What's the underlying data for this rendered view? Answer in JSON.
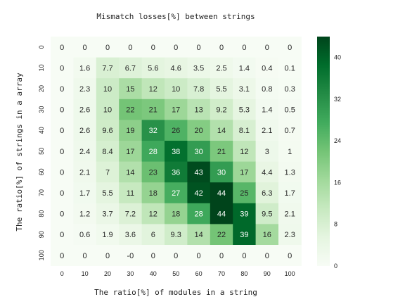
{
  "chart_data": {
    "type": "heatmap",
    "title": "Mismatch losses[%] between strings",
    "xlabel": "The ratio[%] of modules in a string",
    "ylabel": "The ratio[%] of strings in a array",
    "x_categories": [
      "0",
      "10",
      "20",
      "30",
      "40",
      "50",
      "60",
      "70",
      "80",
      "90",
      "100"
    ],
    "y_categories": [
      "0",
      "10",
      "20",
      "30",
      "40",
      "50",
      "60",
      "70",
      "80",
      "90",
      "100"
    ],
    "values": [
      [
        "0",
        "0",
        "0",
        "0",
        "0",
        "0",
        "0",
        "0",
        "0",
        "0",
        "0"
      ],
      [
        "0",
        "1.6",
        "7.7",
        "6.7",
        "5.6",
        "4.6",
        "3.5",
        "2.5",
        "1.4",
        "0.4",
        "0.1"
      ],
      [
        "0",
        "2.3",
        "10",
        "15",
        "12",
        "10",
        "7.8",
        "5.5",
        "3.1",
        "0.8",
        "0.3"
      ],
      [
        "0",
        "2.6",
        "10",
        "22",
        "21",
        "17",
        "13",
        "9.2",
        "5.3",
        "1.4",
        "0.5"
      ],
      [
        "0",
        "2.6",
        "9.6",
        "19",
        "32",
        "26",
        "20",
        "14",
        "8.1",
        "2.1",
        "0.7"
      ],
      [
        "0",
        "2.4",
        "8.4",
        "17",
        "28",
        "38",
        "30",
        "21",
        "12",
        "3",
        "1"
      ],
      [
        "0",
        "2.1",
        "7",
        "14",
        "23",
        "36",
        "43",
        "30",
        "17",
        "4.4",
        "1.3"
      ],
      [
        "0",
        "1.7",
        "5.5",
        "11",
        "18",
        "27",
        "42",
        "44",
        "25",
        "6.3",
        "1.7"
      ],
      [
        "0",
        "1.2",
        "3.7",
        "7.2",
        "12",
        "18",
        "28",
        "44",
        "39",
        "9.5",
        "2.1"
      ],
      [
        "0",
        "0.6",
        "1.9",
        "3.6",
        "6",
        "9.3",
        "14",
        "22",
        "39",
        "16",
        "2.3"
      ],
      [
        "0",
        "0",
        "0",
        "-0",
        "0",
        "0",
        "0",
        "0",
        "0",
        "0",
        "0"
      ]
    ],
    "colorbar": {
      "min": 0,
      "max": 44,
      "ticks": [
        "0",
        "8",
        "16",
        "24",
        "32",
        "40"
      ],
      "colormap": "Greens"
    }
  }
}
